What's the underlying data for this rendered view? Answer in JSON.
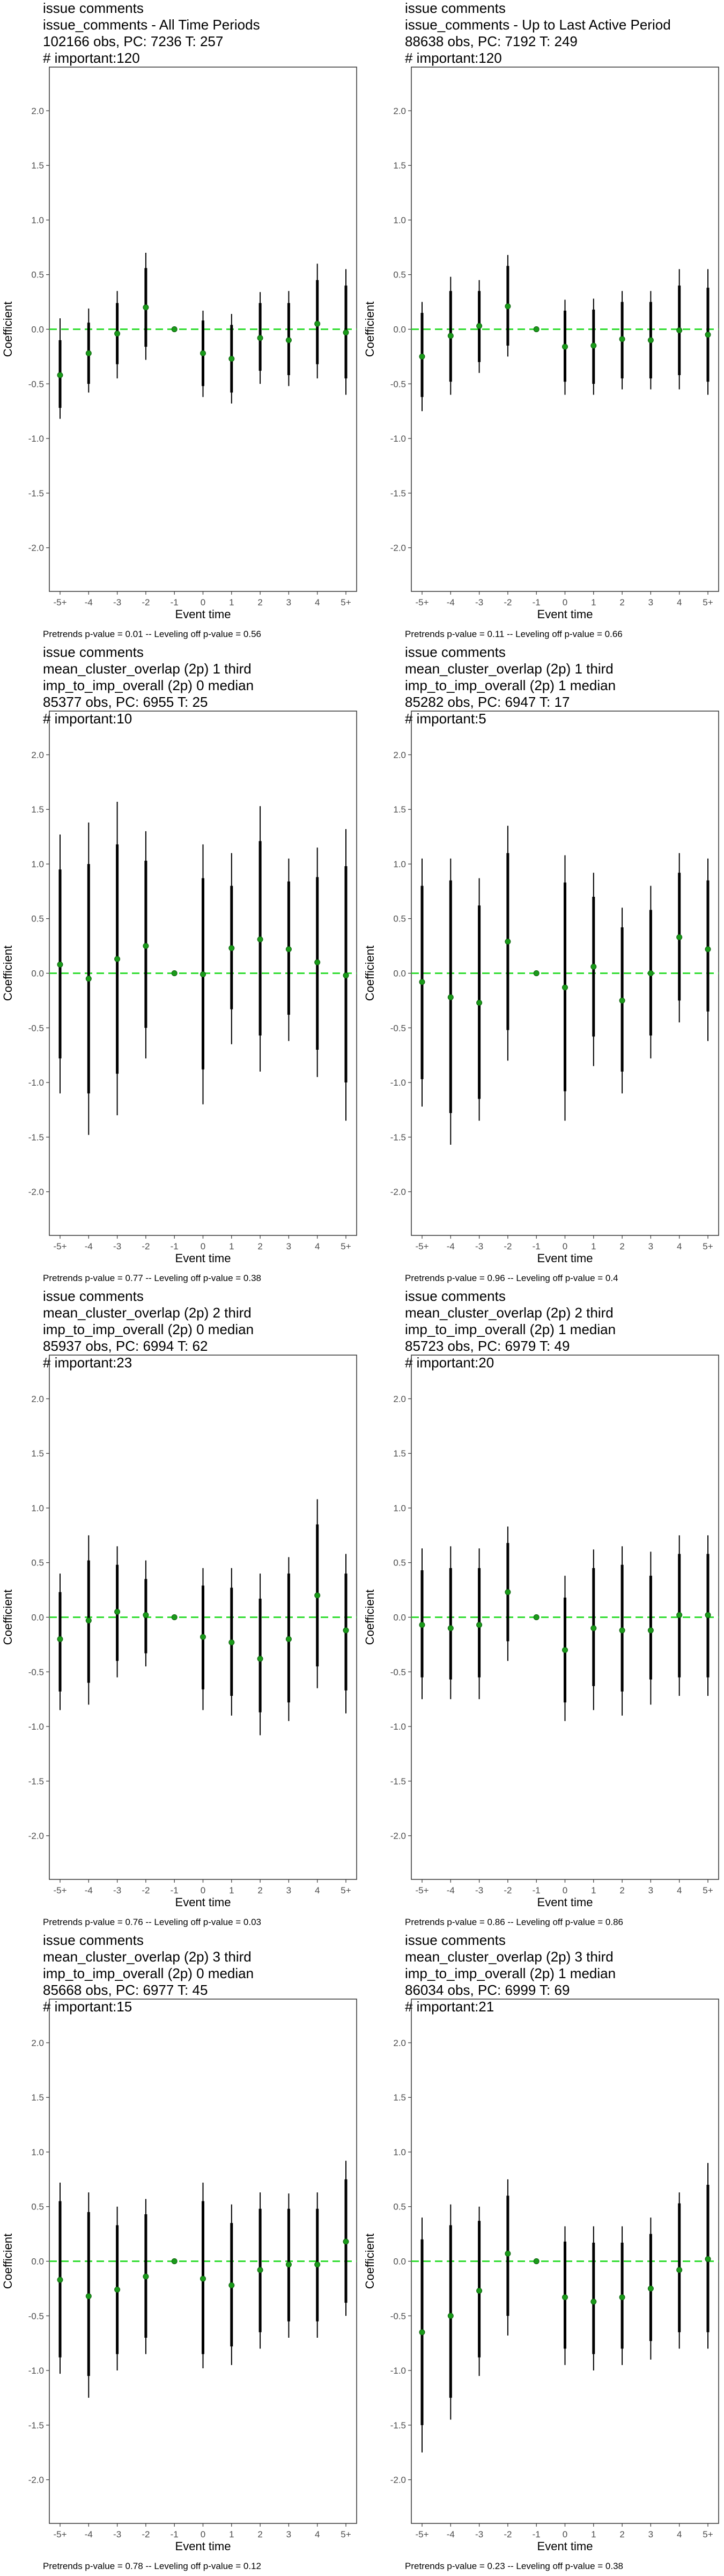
{
  "chart_data": [
    {
      "type": "errorbar",
      "title_lines": [
        "issue comments",
        "issue_comments - All Time Periods",
        "102166 obs, PC: 7236 T: 257",
        "# important:120"
      ],
      "xlabel": "Event time",
      "ylabel": "Coefficient",
      "categories": [
        "-5+",
        "-4",
        "-3",
        "-2",
        "-1",
        "0",
        "1",
        "2",
        "3",
        "4",
        "5+"
      ],
      "yticks": [
        "2.0",
        "1.5",
        "1.0",
        "0.5",
        "0.0",
        "-0.5",
        "-1.0",
        "-1.5",
        "-2.0"
      ],
      "ylim": [
        -2.4,
        2.4
      ],
      "points": [
        -0.42,
        -0.22,
        -0.04,
        0.2,
        0.0,
        -0.22,
        -0.27,
        -0.08,
        -0.1,
        0.05,
        -0.03
      ],
      "ci95_low": [
        -0.82,
        -0.58,
        -0.45,
        -0.28,
        0.0,
        -0.62,
        -0.68,
        -0.5,
        -0.52,
        -0.45,
        -0.6
      ],
      "ci95_high": [
        0.1,
        0.19,
        0.35,
        0.7,
        0.0,
        0.17,
        0.14,
        0.34,
        0.35,
        0.6,
        0.55
      ],
      "ci90_low": [
        -0.72,
        -0.5,
        -0.32,
        -0.16,
        0.0,
        -0.52,
        -0.58,
        -0.38,
        -0.42,
        -0.32,
        -0.45
      ],
      "ci90_high": [
        -0.1,
        0.06,
        0.24,
        0.56,
        0.0,
        0.08,
        0.04,
        0.24,
        0.24,
        0.45,
        0.4
      ],
      "footer": "Pretrends p-value = 0.01 -- Leveling off p-value = 0.56"
    },
    {
      "type": "errorbar",
      "title_lines": [
        "issue comments",
        "issue_comments - Up to Last Active Period",
        "88638 obs, PC: 7192 T: 249",
        "# important:120"
      ],
      "xlabel": "Event time",
      "ylabel": "Coefficient",
      "categories": [
        "-5+",
        "-4",
        "-3",
        "-2",
        "-1",
        "0",
        "1",
        "2",
        "3",
        "4",
        "5+"
      ],
      "yticks": [
        "2.0",
        "1.5",
        "1.0",
        "0.5",
        "0.0",
        "-0.5",
        "-1.0",
        "-1.5",
        "-2.0"
      ],
      "ylim": [
        -2.4,
        2.4
      ],
      "points": [
        -0.25,
        -0.06,
        0.03,
        0.21,
        0.0,
        -0.16,
        -0.15,
        -0.09,
        -0.1,
        -0.01,
        -0.05
      ],
      "ci95_low": [
        -0.75,
        -0.6,
        -0.4,
        -0.25,
        0.0,
        -0.6,
        -0.6,
        -0.55,
        -0.55,
        -0.55,
        -0.6
      ],
      "ci95_high": [
        0.25,
        0.48,
        0.45,
        0.68,
        0.0,
        0.27,
        0.28,
        0.35,
        0.35,
        0.55,
        0.55
      ],
      "ci90_low": [
        -0.62,
        -0.48,
        -0.3,
        -0.15,
        0.0,
        -0.48,
        -0.5,
        -0.45,
        -0.45,
        -0.42,
        -0.48
      ],
      "ci90_high": [
        0.15,
        0.35,
        0.35,
        0.58,
        0.0,
        0.17,
        0.18,
        0.25,
        0.25,
        0.4,
        0.38
      ],
      "footer": "Pretrends p-value = 0.11 -- Leveling off p-value = 0.66"
    },
    {
      "type": "errorbar",
      "title_lines": [
        "issue comments",
        "mean_cluster_overlap (2p) 1 third",
        "imp_to_imp_overall (2p) 0 median",
        "85377 obs, PC: 6955 T: 25",
        "# important:10"
      ],
      "xlabel": "Event time",
      "ylabel": "Coefficient",
      "categories": [
        "-5+",
        "-4",
        "-3",
        "-2",
        "-1",
        "0",
        "1",
        "2",
        "3",
        "4",
        "5+"
      ],
      "yticks": [
        "2.0",
        "1.5",
        "1.0",
        "0.5",
        "0.0",
        "-0.5",
        "-1.0",
        "-1.5",
        "-2.0"
      ],
      "ylim": [
        -2.4,
        2.4
      ],
      "points": [
        0.08,
        -0.05,
        0.13,
        0.25,
        0.0,
        -0.01,
        0.23,
        0.31,
        0.22,
        0.1,
        -0.02
      ],
      "ci95_low": [
        -1.1,
        -1.48,
        -1.3,
        -0.78,
        0.0,
        -1.2,
        -0.65,
        -0.9,
        -0.62,
        -0.95,
        -1.35
      ],
      "ci95_high": [
        1.27,
        1.38,
        1.57,
        1.3,
        0.0,
        1.18,
        1.1,
        1.53,
        1.05,
        1.15,
        1.32
      ],
      "ci90_low": [
        -0.78,
        -1.1,
        -0.92,
        -0.5,
        0.0,
        -0.88,
        -0.33,
        -0.57,
        -0.38,
        -0.7,
        -1.0
      ],
      "ci90_high": [
        0.95,
        1.0,
        1.18,
        1.03,
        0.0,
        0.87,
        0.8,
        1.21,
        0.84,
        0.88,
        0.98
      ],
      "footer": "Pretrends p-value = 0.77 -- Leveling off p-value = 0.38"
    },
    {
      "type": "errorbar",
      "title_lines": [
        "issue comments",
        "mean_cluster_overlap (2p) 1 third",
        "imp_to_imp_overall (2p) 1 median",
        "85282 obs, PC: 6947 T: 17",
        "# important:5"
      ],
      "xlabel": "Event time",
      "ylabel": "Coefficient",
      "categories": [
        "-5+",
        "-4",
        "-3",
        "-2",
        "-1",
        "0",
        "1",
        "2",
        "3",
        "4",
        "5+"
      ],
      "yticks": [
        "2.0",
        "1.5",
        "1.0",
        "0.5",
        "0.0",
        "-0.5",
        "-1.0",
        "-1.5",
        "-2.0"
      ],
      "ylim": [
        -2.4,
        2.4
      ],
      "points": [
        -0.08,
        -0.22,
        -0.27,
        0.29,
        0.0,
        -0.13,
        0.06,
        -0.25,
        0.0,
        0.33,
        0.22
      ],
      "ci95_low": [
        -1.22,
        -1.57,
        -1.35,
        -0.8,
        0.0,
        -1.35,
        -0.85,
        -1.1,
        -0.78,
        -0.45,
        -0.62
      ],
      "ci95_high": [
        1.05,
        1.05,
        0.87,
        1.35,
        0.0,
        1.08,
        0.92,
        0.6,
        0.8,
        1.1,
        1.05
      ],
      "ci90_low": [
        -0.97,
        -1.28,
        -1.15,
        -0.52,
        0.0,
        -1.08,
        -0.58,
        -0.9,
        -0.57,
        -0.25,
        -0.35
      ],
      "ci90_high": [
        0.8,
        0.85,
        0.62,
        1.1,
        0.0,
        0.83,
        0.7,
        0.42,
        0.58,
        0.92,
        0.85
      ],
      "footer": "Pretrends p-value = 0.96 -- Leveling off p-value = 0.4"
    },
    {
      "type": "errorbar",
      "title_lines": [
        "issue comments",
        "mean_cluster_overlap (2p) 2 third",
        "imp_to_imp_overall (2p) 0 median",
        "85937 obs, PC: 6994 T: 62",
        "# important:23"
      ],
      "xlabel": "Event time",
      "ylabel": "Coefficient",
      "categories": [
        "-5+",
        "-4",
        "-3",
        "-2",
        "-1",
        "0",
        "1",
        "2",
        "3",
        "4",
        "5+"
      ],
      "yticks": [
        "2.0",
        "1.5",
        "1.0",
        "0.5",
        "0.0",
        "-0.5",
        "-1.0",
        "-1.5",
        "-2.0"
      ],
      "ylim": [
        -2.4,
        2.4
      ],
      "points": [
        -0.2,
        -0.03,
        0.05,
        0.02,
        0.0,
        -0.18,
        -0.23,
        -0.38,
        -0.2,
        0.2,
        -0.12
      ],
      "ci95_low": [
        -0.85,
        -0.8,
        -0.55,
        -0.45,
        0.0,
        -0.85,
        -0.9,
        -1.08,
        -0.95,
        -0.65,
        -0.88
      ],
      "ci95_high": [
        0.4,
        0.75,
        0.65,
        0.52,
        0.0,
        0.45,
        0.45,
        0.4,
        0.55,
        1.08,
        0.58
      ],
      "ci90_low": [
        -0.68,
        -0.6,
        -0.4,
        -0.33,
        0.0,
        -0.66,
        -0.72,
        -0.87,
        -0.78,
        -0.45,
        -0.67
      ],
      "ci90_high": [
        0.23,
        0.52,
        0.48,
        0.35,
        0.0,
        0.29,
        0.27,
        0.17,
        0.4,
        0.85,
        0.4
      ],
      "footer": "Pretrends p-value = 0.76 -- Leveling off p-value = 0.03"
    },
    {
      "type": "errorbar",
      "title_lines": [
        "issue comments",
        "mean_cluster_overlap (2p) 2 third",
        "imp_to_imp_overall (2p) 1 median",
        "85723 obs, PC: 6979 T: 49",
        "# important:20"
      ],
      "xlabel": "Event time",
      "ylabel": "Coefficient",
      "categories": [
        "-5+",
        "-4",
        "-3",
        "-2",
        "-1",
        "0",
        "1",
        "2",
        "3",
        "4",
        "5+"
      ],
      "yticks": [
        "2.0",
        "1.5",
        "1.0",
        "0.5",
        "0.0",
        "-0.5",
        "-1.0",
        "-1.5",
        "-2.0"
      ],
      "ylim": [
        -2.4,
        2.4
      ],
      "points": [
        -0.07,
        -0.1,
        -0.07,
        0.23,
        0.0,
        -0.3,
        -0.1,
        -0.12,
        -0.12,
        0.02,
        0.02
      ],
      "ci95_low": [
        -0.75,
        -0.75,
        -0.75,
        -0.4,
        0.0,
        -0.95,
        -0.85,
        -0.9,
        -0.8,
        -0.72,
        -0.72
      ],
      "ci95_high": [
        0.63,
        0.65,
        0.63,
        0.83,
        0.0,
        0.38,
        0.62,
        0.65,
        0.6,
        0.75,
        0.75
      ],
      "ci90_low": [
        -0.55,
        -0.57,
        -0.55,
        -0.22,
        0.0,
        -0.78,
        -0.63,
        -0.68,
        -0.57,
        -0.55,
        -0.55
      ],
      "ci90_high": [
        0.43,
        0.45,
        0.45,
        0.68,
        0.0,
        0.18,
        0.45,
        0.48,
        0.38,
        0.58,
        0.58
      ],
      "footer": "Pretrends p-value = 0.86 -- Leveling off p-value = 0.86"
    },
    {
      "type": "errorbar",
      "title_lines": [
        "issue comments",
        "mean_cluster_overlap (2p) 3 third",
        "imp_to_imp_overall (2p) 0 median",
        "85668 obs, PC: 6977 T: 45",
        "# important:15"
      ],
      "xlabel": "Event time",
      "ylabel": "Coefficient",
      "categories": [
        "-5+",
        "-4",
        "-3",
        "-2",
        "-1",
        "0",
        "1",
        "2",
        "3",
        "4",
        "5+"
      ],
      "yticks": [
        "2.0",
        "1.5",
        "1.0",
        "0.5",
        "0.0",
        "-0.5",
        "-1.0",
        "-1.5",
        "-2.0"
      ],
      "ylim": [
        -2.4,
        2.4
      ],
      "points": [
        -0.17,
        -0.32,
        -0.26,
        -0.14,
        0.0,
        -0.16,
        -0.22,
        -0.08,
        -0.03,
        -0.03,
        0.18
      ],
      "ci95_low": [
        -1.03,
        -1.25,
        -1.0,
        -0.85,
        0.0,
        -0.98,
        -0.95,
        -0.8,
        -0.7,
        -0.7,
        -0.5
      ],
      "ci95_high": [
        0.72,
        0.63,
        0.5,
        0.57,
        0.0,
        0.72,
        0.52,
        0.63,
        0.62,
        0.63,
        0.92
      ],
      "ci90_low": [
        -0.88,
        -1.05,
        -0.85,
        -0.7,
        0.0,
        -0.85,
        -0.78,
        -0.65,
        -0.55,
        -0.55,
        -0.38
      ],
      "ci90_high": [
        0.55,
        0.45,
        0.33,
        0.43,
        0.0,
        0.55,
        0.35,
        0.48,
        0.48,
        0.48,
        0.75
      ],
      "footer": "Pretrends p-value = 0.78 -- Leveling off p-value = 0.12"
    },
    {
      "type": "errorbar",
      "title_lines": [
        "issue comments",
        "mean_cluster_overlap (2p) 3 third",
        "imp_to_imp_overall (2p) 1 median",
        "86034 obs, PC: 6999 T: 69",
        "# important:21"
      ],
      "xlabel": "Event time",
      "ylabel": "Coefficient",
      "categories": [
        "-5+",
        "-4",
        "-3",
        "-2",
        "-1",
        "0",
        "1",
        "2",
        "3",
        "4",
        "5+"
      ],
      "yticks": [
        "2.0",
        "1.5",
        "1.0",
        "0.5",
        "0.0",
        "-0.5",
        "-1.0",
        "-1.5",
        "-2.0"
      ],
      "ylim": [
        -2.4,
        2.4
      ],
      "points": [
        -0.65,
        -0.5,
        -0.27,
        0.07,
        0.0,
        -0.33,
        -0.37,
        -0.33,
        -0.25,
        -0.08,
        0.02
      ],
      "ci95_low": [
        -1.75,
        -1.45,
        -1.05,
        -0.68,
        0.0,
        -0.95,
        -1.0,
        -0.95,
        -0.9,
        -0.8,
        -0.8
      ],
      "ci95_high": [
        0.4,
        0.52,
        0.5,
        0.75,
        0.0,
        0.32,
        0.32,
        0.32,
        0.4,
        0.63,
        0.9
      ],
      "ci90_low": [
        -1.5,
        -1.25,
        -0.88,
        -0.5,
        0.0,
        -0.8,
        -0.85,
        -0.8,
        -0.73,
        -0.65,
        -0.65
      ],
      "ci90_high": [
        0.2,
        0.33,
        0.37,
        0.6,
        0.0,
        0.18,
        0.17,
        0.17,
        0.25,
        0.53,
        0.7
      ],
      "footer": "Pretrends p-value = 0.23 -- Leveling off p-value = 0.38"
    }
  ],
  "colors": {
    "point": "#1a9b1a",
    "reference_line": "#33dd33",
    "error_bar": "#000000",
    "axis_text": "#4d4d4d",
    "frame": "#333333"
  }
}
